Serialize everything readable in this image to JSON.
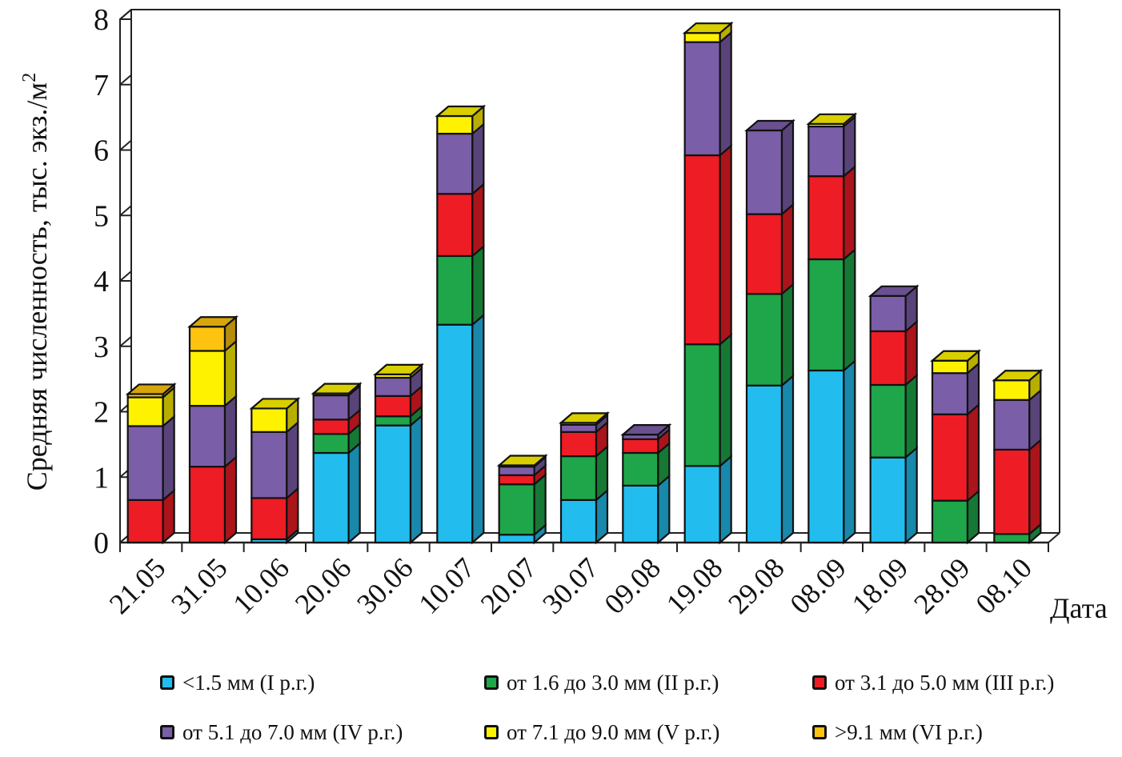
{
  "chart_data": {
    "type": "bar",
    "stacked": true,
    "style": "3d",
    "title": "",
    "xlabel": "Дата",
    "ylabel": "Средняя численность, тыс. экз./м",
    "ylabel_superscript": "2",
    "ylim": [
      0,
      8
    ],
    "yticks": [
      "0",
      "1",
      "2",
      "3",
      "4",
      "5",
      "6",
      "7",
      "8"
    ],
    "grid": false,
    "legend_position": "bottom",
    "categories": [
      "21.05",
      "31.05",
      "10.06",
      "20.06",
      "30.06",
      "10.07",
      "20.07",
      "30.07",
      "09.08",
      "19.08",
      "29.08",
      "08.09",
      "18.09",
      "28.09",
      "08.10"
    ],
    "series": [
      {
        "name": "<1.5 мм (I р.г.)",
        "color": "#22bdee",
        "values": [
          0,
          0,
          0.05,
          1.37,
          1.79,
          3.33,
          0.12,
          0.65,
          0.87,
          1.17,
          2.4,
          2.63,
          1.3,
          0,
          0
        ]
      },
      {
        "name": "от 1.6 до 3.0 мм (II р.г.)",
        "color": "#1fa64a",
        "values": [
          0,
          0,
          0,
          0.29,
          0.14,
          1.05,
          0.77,
          0.67,
          0.5,
          1.86,
          1.4,
          1.7,
          1.11,
          0.64,
          0.13
        ]
      },
      {
        "name": "от 3.1 до 5.0 мм (III р.г.)",
        "color": "#ee1c24",
        "values": [
          0.65,
          1.16,
          0.63,
          0.22,
          0.31,
          0.95,
          0.14,
          0.37,
          0.21,
          2.89,
          1.22,
          1.27,
          0.82,
          1.32,
          1.29
        ]
      },
      {
        "name": "от 5.1 до 7.0 мм (IV р.г.)",
        "color": "#7b5ea8",
        "values": [
          1.13,
          0.93,
          1.01,
          0.37,
          0.28,
          0.92,
          0.13,
          0.11,
          0.07,
          1.73,
          1.28,
          0.76,
          0.54,
          0.63,
          0.76
        ]
      },
      {
        "name": "от 7.1 до 9.0 мм (V р.г.)",
        "color": "#fff200",
        "values": [
          0.44,
          0.84,
          0.36,
          0.03,
          0.05,
          0.27,
          0.02,
          0.03,
          0,
          0.14,
          0,
          0.04,
          0,
          0.19,
          0.3
        ]
      },
      {
        "name": ">9.1 мм (VI р.г.)",
        "color": "#fdc30f",
        "values": [
          0.05,
          0.37,
          0,
          0,
          0,
          0,
          0,
          0,
          0,
          0,
          0,
          0,
          0,
          0,
          0
        ]
      }
    ]
  }
}
